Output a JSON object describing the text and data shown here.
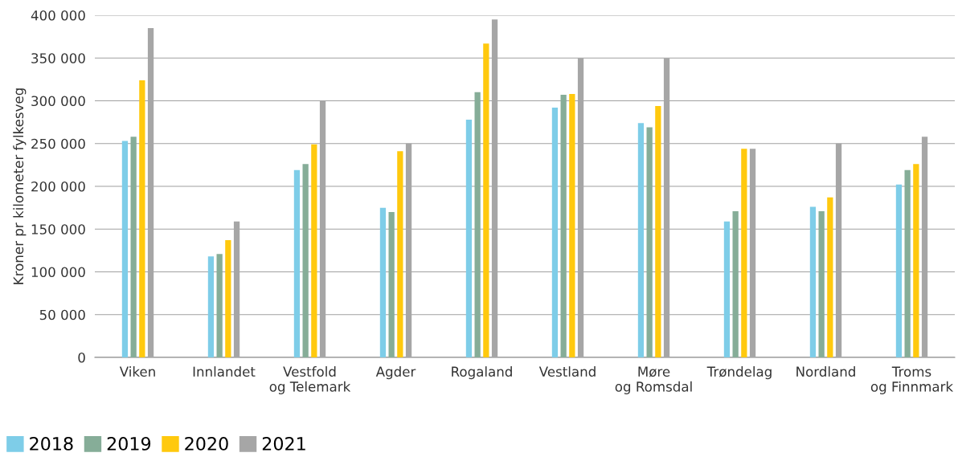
{
  "chart_data": {
    "type": "bar",
    "ylabel": "Kroner pr kilometer fylkesveg",
    "categories": [
      "Viken",
      "Innlandet",
      "Vestfold\nog Telemark",
      "Agder",
      "Rogaland",
      "Vestland",
      "Møre\nog Romsdal",
      "Trøndelag",
      "Nordland",
      "Troms\nog Finnmark"
    ],
    "series": [
      {
        "name": "2018",
        "color": "#7ecde8",
        "values": [
          253000,
          118000,
          219000,
          175000,
          278000,
          292000,
          274000,
          159000,
          176000,
          202000
        ]
      },
      {
        "name": "2019",
        "color": "#86ad98",
        "values": [
          258000,
          121000,
          226000,
          170000,
          310000,
          307000,
          269000,
          171000,
          171000,
          219000
        ]
      },
      {
        "name": "2020",
        "color": "#ffc90e",
        "values": [
          324000,
          137000,
          249000,
          241000,
          367000,
          308000,
          294000,
          244000,
          187000,
          226000
        ]
      },
      {
        "name": "2021",
        "color": "#a6a6a6",
        "values": [
          385000,
          159000,
          300000,
          250000,
          395000,
          350000,
          350000,
          244000,
          250000,
          258000
        ]
      }
    ],
    "ylim": [
      0,
      400000
    ],
    "yticks": [
      0,
      {
        "value": 50000,
        "label": "50 000"
      },
      {
        "value": 100000,
        "label": "100 000"
      },
      {
        "value": 150000,
        "label": "150 000"
      },
      {
        "value": 200000,
        "label": "200 000"
      },
      {
        "value": 250000,
        "label": "250 000"
      },
      {
        "value": 300000,
        "label": "300 000"
      },
      {
        "value": 350000,
        "label": "350 000"
      },
      {
        "value": 400000,
        "label": "400 000"
      }
    ],
    "grid": "y",
    "legend": "bottom left"
  }
}
